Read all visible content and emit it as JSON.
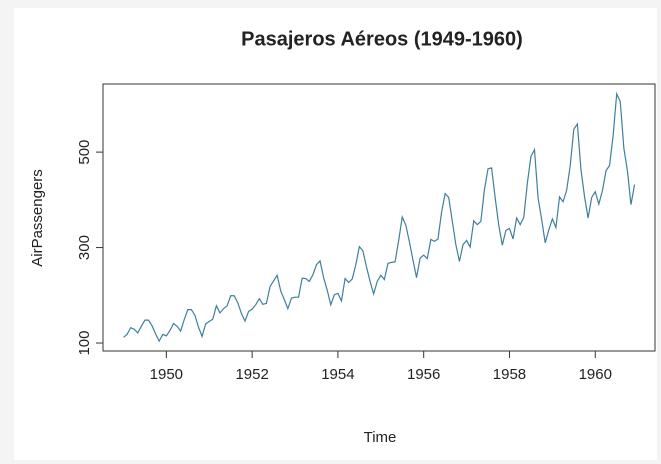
{
  "chart_data": {
    "type": "line",
    "title": "Pasajeros Aéreos (1949-1960)",
    "x_label": "Time",
    "y_label": "AirPassengers",
    "color": "#3f7f9c",
    "x": [
      1949,
      1949.083,
      1949.167,
      1949.25,
      1949.333,
      1949.417,
      1949.5,
      1949.583,
      1949.667,
      1949.75,
      1949.833,
      1949.917,
      1950,
      1950.083,
      1950.167,
      1950.25,
      1950.333,
      1950.417,
      1950.5,
      1950.583,
      1950.667,
      1950.75,
      1950.833,
      1950.917,
      1951,
      1951.083,
      1951.167,
      1951.25,
      1951.333,
      1951.417,
      1951.5,
      1951.583,
      1951.667,
      1951.75,
      1951.833,
      1951.917,
      1952,
      1952.083,
      1952.167,
      1952.25,
      1952.333,
      1952.417,
      1952.5,
      1952.583,
      1952.667,
      1952.75,
      1952.833,
      1952.917,
      1953,
      1953.083,
      1953.167,
      1953.25,
      1953.333,
      1953.417,
      1953.5,
      1953.583,
      1953.667,
      1953.75,
      1953.833,
      1953.917,
      1954,
      1954.083,
      1954.167,
      1954.25,
      1954.333,
      1954.417,
      1954.5,
      1954.583,
      1954.667,
      1954.75,
      1954.833,
      1954.917,
      1955,
      1955.083,
      1955.167,
      1955.25,
      1955.333,
      1955.417,
      1955.5,
      1955.583,
      1955.667,
      1955.75,
      1955.833,
      1955.917,
      1956,
      1956.083,
      1956.167,
      1956.25,
      1956.333,
      1956.417,
      1956.5,
      1956.583,
      1956.667,
      1956.75,
      1956.833,
      1956.917,
      1957,
      1957.083,
      1957.167,
      1957.25,
      1957.333,
      1957.417,
      1957.5,
      1957.583,
      1957.667,
      1957.75,
      1957.833,
      1957.917,
      1958,
      1958.083,
      1958.167,
      1958.25,
      1958.333,
      1958.417,
      1958.5,
      1958.583,
      1958.667,
      1958.75,
      1958.833,
      1958.917,
      1959,
      1959.083,
      1959.167,
      1959.25,
      1959.333,
      1959.417,
      1959.5,
      1959.583,
      1959.667,
      1959.75,
      1959.833,
      1959.917,
      1960,
      1960.083,
      1960.167,
      1960.25,
      1960.333,
      1960.417,
      1960.5,
      1960.583,
      1960.667,
      1960.75,
      1960.833,
      1960.917
    ],
    "values": [
      112,
      118,
      132,
      129,
      121,
      135,
      148,
      148,
      136,
      119,
      104,
      118,
      115,
      126,
      141,
      135,
      125,
      149,
      170,
      170,
      158,
      133,
      114,
      140,
      145,
      150,
      178,
      163,
      172,
      178,
      199,
      199,
      184,
      162,
      146,
      166,
      171,
      180,
      193,
      181,
      183,
      218,
      230,
      242,
      209,
      191,
      172,
      194,
      196,
      196,
      236,
      235,
      229,
      243,
      264,
      272,
      237,
      211,
      180,
      201,
      204,
      188,
      235,
      227,
      234,
      264,
      302,
      293,
      259,
      229,
      203,
      229,
      242,
      233,
      267,
      269,
      270,
      315,
      364,
      347,
      312,
      274,
      237,
      278,
      284,
      277,
      317,
      313,
      318,
      374,
      413,
      405,
      355,
      306,
      271,
      306,
      315,
      301,
      356,
      348,
      355,
      422,
      465,
      467,
      404,
      347,
      305,
      336,
      340,
      318,
      362,
      348,
      363,
      435,
      491,
      505,
      404,
      359,
      310,
      337,
      360,
      342,
      406,
      396,
      420,
      472,
      548,
      559,
      463,
      407,
      362,
      405,
      417,
      391,
      419,
      461,
      472,
      535,
      622,
      606,
      508,
      461,
      390,
      432
    ],
    "xlim": [
      1948.523,
      1961.393
    ],
    "ylim": [
      83.28,
      642.72
    ],
    "xticks": [
      1950,
      1952,
      1954,
      1956,
      1958,
      1960
    ],
    "yticks": [
      100,
      300,
      500
    ]
  }
}
